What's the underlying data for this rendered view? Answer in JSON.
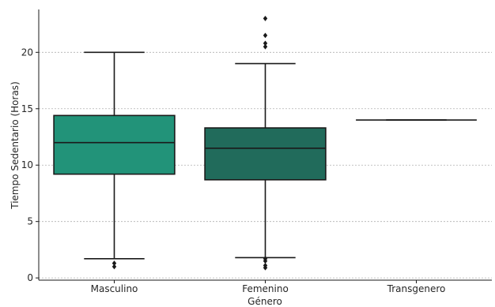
{
  "chart_data": {
    "type": "box",
    "title": "",
    "xlabel": "Género",
    "ylabel": "Tiempo Sedentario (Horas)",
    "ylim": [
      -0.2,
      23.8
    ],
    "yticks": [
      0,
      5,
      10,
      15,
      20
    ],
    "grid": "horizontal dotted",
    "categories": [
      "Masculino",
      "Femenino",
      "Transgenero"
    ],
    "boxes": [
      {
        "category": "Masculino",
        "whisker_low": 1.7,
        "q1": 9.2,
        "median": 12.0,
        "q3": 14.4,
        "whisker_high": 20.0,
        "outliers": [
          1.0,
          1.3
        ],
        "color": "#229379"
      },
      {
        "category": "Femenino",
        "whisker_low": 1.8,
        "q1": 8.7,
        "median": 11.5,
        "q3": 13.3,
        "whisker_high": 19.0,
        "outliers": [
          0.9,
          1.1,
          1.5,
          1.7,
          20.5,
          20.8,
          21.5,
          23.0
        ],
        "color": "#216b5b"
      },
      {
        "category": "Transgenero",
        "whisker_low": 14.0,
        "q1": 14.0,
        "median": 14.0,
        "q3": 14.0,
        "whisker_high": 14.0,
        "outliers": [],
        "color": "#2a4f47"
      }
    ]
  }
}
